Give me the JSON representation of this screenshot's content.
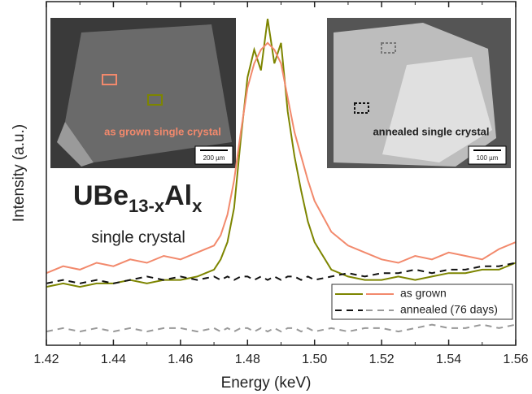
{
  "chart_data": {
    "type": "line",
    "xlabel": "Energy (keV)",
    "ylabel": "Intensity (a.u.)",
    "xlim": [
      1.42,
      1.56
    ],
    "xticks": [
      1.42,
      1.44,
      1.46,
      1.48,
      {
        "value": 1.5,
        "label": "1.50"
      },
      1.52,
      1.54,
      1.56
    ],
    "ylim": [
      0,
      100
    ],
    "x": [
      1.42,
      1.425,
      1.43,
      1.435,
      1.44,
      1.445,
      1.45,
      1.455,
      1.46,
      1.465,
      1.47,
      1.472,
      1.474,
      1.476,
      1.478,
      1.48,
      1.482,
      1.484,
      1.486,
      1.488,
      1.49,
      1.492,
      1.494,
      1.496,
      1.498,
      1.5,
      1.505,
      1.51,
      1.515,
      1.52,
      1.525,
      1.53,
      1.535,
      1.54,
      1.545,
      1.55,
      1.555,
      1.56
    ],
    "series": [
      {
        "color": "#7d8500",
        "dash": false,
        "values": [
          17,
          18,
          17,
          18,
          18,
          19,
          18,
          19,
          19,
          20,
          22,
          25,
          30,
          40,
          60,
          78,
          86,
          80,
          95,
          82,
          88,
          68,
          55,
          45,
          36,
          30,
          22,
          20,
          19,
          19,
          20,
          19,
          20,
          21,
          21,
          22,
          22,
          24
        ]
      },
      {
        "color": "#f2896c",
        "dash": false,
        "values": [
          21,
          23,
          22,
          24,
          23,
          25,
          24,
          26,
          25,
          27,
          29,
          32,
          38,
          48,
          62,
          75,
          82,
          86,
          88,
          86,
          82,
          72,
          62,
          55,
          48,
          42,
          33,
          29,
          27,
          25,
          24,
          26,
          25,
          27,
          26,
          25,
          28,
          30
        ]
      },
      {
        "color": "#111111",
        "dash": true,
        "values": [
          18,
          19,
          18,
          19,
          18,
          19,
          20,
          19,
          20,
          19,
          20,
          19,
          20,
          19,
          20,
          20,
          19,
          20,
          19,
          20,
          19,
          20,
          20,
          19,
          20,
          19,
          20,
          21,
          20,
          21,
          21,
          22,
          21,
          22,
          22,
          23,
          23,
          24
        ]
      },
      {
        "color": "#999999",
        "dash": true,
        "values": [
          4,
          5,
          4,
          5,
          4,
          5,
          4,
          5,
          5,
          4,
          5,
          4,
          5,
          4,
          5,
          5,
          4,
          5,
          4,
          5,
          4,
          5,
          5,
          4,
          5,
          4,
          5,
          4,
          5,
          5,
          4,
          5,
          6,
          5,
          5,
          6,
          5,
          6
        ]
      }
    ],
    "legend": [
      {
        "label": "as grown",
        "series": [
          0,
          1
        ]
      },
      {
        "label": "annealed (76 days)",
        "series": [
          2,
          3
        ]
      }
    ],
    "formula": [
      "UBe",
      "13-x",
      "Al",
      "x"
    ],
    "annotation": "single crystal",
    "insets": [
      {
        "caption": "as grown single crystal",
        "scale": "200 µm"
      },
      {
        "caption": "annealed single crystal",
        "scale": "100 µm"
      }
    ]
  }
}
